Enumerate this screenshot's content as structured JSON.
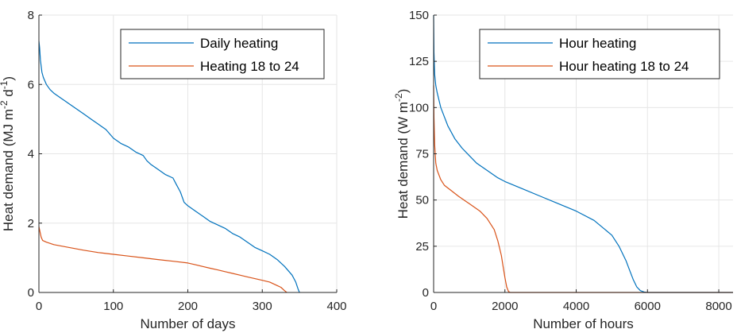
{
  "chart_data": [
    {
      "type": "line",
      "xlabel": "Number of days",
      "ylabel": {
        "base": "Heat demand (MJ m",
        "sup1": "-2",
        "mid": " d",
        "sup2": "-1",
        "end": ")"
      },
      "xlim": [
        0,
        400
      ],
      "ylim": [
        0,
        8
      ],
      "xticks": [
        0,
        100,
        200,
        300,
        400
      ],
      "yticks": [
        0,
        2,
        4,
        6,
        8
      ],
      "grid": true,
      "legend_position": "top-right",
      "series": [
        {
          "name": "Daily heating",
          "color": "#0072BD",
          "x": [
            0,
            1,
            2,
            4,
            6,
            10,
            15,
            20,
            30,
            40,
            50,
            60,
            70,
            80,
            90,
            100,
            110,
            120,
            130,
            140,
            145,
            150,
            160,
            170,
            180,
            185,
            190,
            195,
            200,
            210,
            220,
            230,
            240,
            250,
            260,
            270,
            280,
            290,
            300,
            310,
            320,
            330,
            340,
            345,
            348,
            350
          ],
          "y": [
            7.25,
            7.05,
            6.7,
            6.35,
            6.2,
            6.0,
            5.85,
            5.75,
            5.6,
            5.45,
            5.3,
            5.15,
            5.0,
            4.85,
            4.7,
            4.45,
            4.3,
            4.2,
            4.05,
            3.95,
            3.8,
            3.7,
            3.55,
            3.4,
            3.3,
            3.1,
            2.9,
            2.6,
            2.5,
            2.35,
            2.2,
            2.05,
            1.95,
            1.85,
            1.7,
            1.6,
            1.45,
            1.3,
            1.2,
            1.1,
            0.95,
            0.75,
            0.5,
            0.3,
            0.1,
            0.0
          ]
        },
        {
          "name": "Heating 18 to 24",
          "color": "#D95319",
          "x": [
            0,
            1,
            3,
            5,
            10,
            20,
            40,
            60,
            80,
            100,
            120,
            140,
            160,
            180,
            200,
            210,
            220,
            230,
            240,
            250,
            260,
            270,
            280,
            290,
            300,
            310,
            320,
            325,
            330,
            333
          ],
          "y": [
            1.9,
            1.8,
            1.6,
            1.5,
            1.45,
            1.38,
            1.3,
            1.22,
            1.15,
            1.1,
            1.05,
            1.0,
            0.95,
            0.9,
            0.85,
            0.8,
            0.75,
            0.7,
            0.65,
            0.6,
            0.55,
            0.5,
            0.45,
            0.4,
            0.35,
            0.3,
            0.2,
            0.15,
            0.05,
            0.0
          ]
        }
      ]
    },
    {
      "type": "line",
      "xlabel": "Number of hours",
      "ylabel": {
        "base": "Heat demand (W m",
        "sup1": "-2",
        "mid": "",
        "sup2": "",
        "end": ")"
      },
      "xlim": [
        0,
        8400
      ],
      "ylim": [
        0,
        150
      ],
      "xticks": [
        0,
        2000,
        4000,
        6000,
        8000
      ],
      "yticks": [
        0,
        25,
        50,
        75,
        100,
        125,
        150
      ],
      "grid": true,
      "legend_position": "top-right",
      "series": [
        {
          "name": "Hour heating",
          "color": "#0072BD",
          "x": [
            0,
            10,
            30,
            60,
            100,
            200,
            400,
            600,
            800,
            1000,
            1200,
            1500,
            1800,
            2000,
            2500,
            3000,
            3500,
            4000,
            4500,
            5000,
            5200,
            5400,
            5500,
            5600,
            5700,
            5800,
            5900,
            6000,
            8400
          ],
          "y": [
            150,
            130,
            118,
            112,
            108,
            100,
            90,
            83,
            78,
            74,
            70,
            66,
            62,
            60,
            56,
            52,
            48,
            44,
            39,
            31,
            25,
            17,
            12,
            7,
            3,
            1,
            0.3,
            0,
            0
          ]
        },
        {
          "name": "Hour heating 18 to 24",
          "color": "#D95319",
          "x": [
            0,
            10,
            30,
            60,
            100,
            200,
            300,
            500,
            700,
            1000,
            1300,
            1500,
            1700,
            1800,
            1900,
            1950,
            2000,
            2050,
            2100,
            2150,
            8400
          ],
          "y": [
            112,
            95,
            80,
            70,
            66,
            61,
            58,
            55,
            52,
            48,
            44,
            40,
            34,
            28,
            20,
            14,
            8,
            3,
            0.5,
            0,
            0
          ]
        }
      ]
    }
  ]
}
